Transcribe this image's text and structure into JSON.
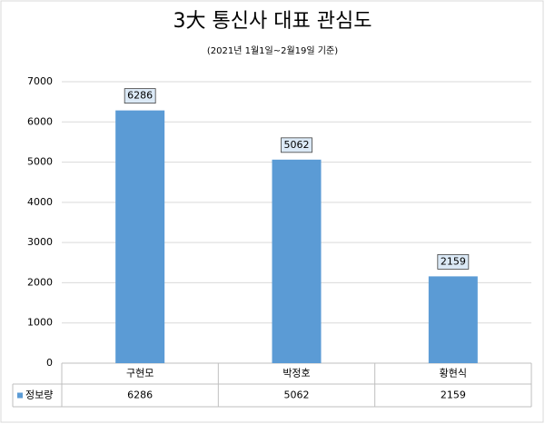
{
  "chart_data": {
    "type": "bar",
    "title": "3大 통신사 대표 관심도",
    "subtitle": "(2021년 1월1일~2월19일 기준)",
    "categories": [
      "구현모",
      "박정호",
      "황현식"
    ],
    "series": [
      {
        "name": "정보량",
        "color": "#5b9bd5",
        "values": [
          6286,
          5062,
          2159
        ]
      }
    ],
    "ylim": [
      0,
      7000
    ],
    "yticks": [
      0,
      1000,
      2000,
      3000,
      4000,
      5000,
      6000,
      7000
    ],
    "grid": true,
    "data_table": true
  }
}
